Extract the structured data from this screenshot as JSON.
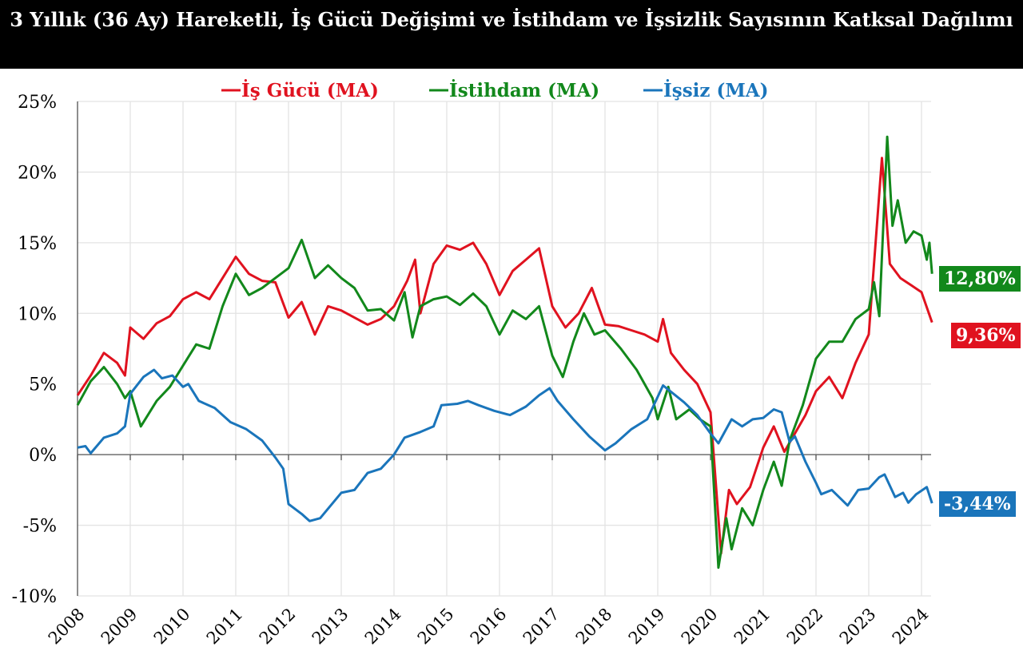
{
  "title": "3 Yıllık (36 Ay) Hareketli, İş Gücü Değişimi ve İstihdam ve İşsizlik Sayısının Katksal Dağılımı",
  "chart_data": {
    "type": "line",
    "title": "3 Yıllık (36 Ay) Hareketli, İş Gücü Değişimi ve İstihdam ve İşsizlik Sayısının Katksal Dağılımı",
    "xlabel": "",
    "ylabel": "",
    "xlim": [
      2008,
      2024.2
    ],
    "ylim": [
      -10,
      25
    ],
    "x_ticks": [
      "2008",
      "2009",
      "2010",
      "2011",
      "2012",
      "2013",
      "2014",
      "2015",
      "2016",
      "2017",
      "2018",
      "2019",
      "2020",
      "2021",
      "2022",
      "2023",
      "2024"
    ],
    "y_ticks": [
      "25%",
      "20%",
      "15%",
      "10%",
      "5%",
      "0%",
      "-5%",
      "-10%"
    ],
    "grid": true,
    "legend_position": "top",
    "series": [
      {
        "name": "İş Gücü (MA)",
        "color": "#e0121f",
        "end_label": "9,36%",
        "x": [
          2008,
          2008.25,
          2008.5,
          2008.75,
          2008.9,
          2009,
          2009.25,
          2009.5,
          2009.75,
          2010,
          2010.25,
          2010.5,
          2010.75,
          2011,
          2011.25,
          2011.5,
          2011.75,
          2012,
          2012.25,
          2012.5,
          2012.75,
          2013,
          2013.25,
          2013.5,
          2013.75,
          2014,
          2014.25,
          2014.4,
          2014.5,
          2014.75,
          2015,
          2015.25,
          2015.5,
          2015.75,
          2016,
          2016.25,
          2016.5,
          2016.75,
          2017,
          2017.25,
          2017.5,
          2017.75,
          2018,
          2018.25,
          2018.5,
          2018.75,
          2019,
          2019.1,
          2019.25,
          2019.5,
          2019.75,
          2020,
          2020.2,
          2020.35,
          2020.5,
          2020.75,
          2021,
          2021.2,
          2021.4,
          2021.6,
          2021.8,
          2022,
          2022.25,
          2022.5,
          2022.75,
          2023,
          2023.25,
          2023.4,
          2023.6,
          2023.8,
          2024,
          2024.2
        ],
        "y": [
          4.2,
          5.6,
          7.2,
          6.5,
          5.6,
          9.0,
          8.2,
          9.3,
          9.8,
          11.0,
          11.5,
          11.0,
          12.5,
          14.0,
          12.8,
          12.3,
          12.2,
          9.7,
          10.8,
          8.5,
          10.5,
          10.2,
          9.7,
          9.2,
          9.6,
          10.5,
          12.3,
          13.8,
          10.0,
          13.5,
          14.8,
          14.5,
          15.0,
          13.5,
          11.3,
          13.0,
          13.8,
          14.6,
          10.5,
          9.0,
          10.0,
          11.8,
          9.2,
          9.1,
          8.8,
          8.5,
          8.0,
          9.6,
          7.2,
          6.0,
          5.0,
          3.0,
          -7.0,
          -2.5,
          -3.5,
          -2.3,
          0.5,
          2.0,
          0.2,
          1.5,
          2.8,
          4.5,
          5.5,
          4.0,
          6.5,
          8.5,
          21.0,
          13.5,
          12.5,
          12.0,
          11.5,
          9.36
        ]
      },
      {
        "name": "İstihdam (MA)",
        "color": "#12881b",
        "end_label": "12,80%",
        "x": [
          2008,
          2008.25,
          2008.5,
          2008.75,
          2008.9,
          2009,
          2009.2,
          2009.5,
          2009.75,
          2010,
          2010.25,
          2010.5,
          2010.75,
          2011,
          2011.25,
          2011.5,
          2011.75,
          2012,
          2012.25,
          2012.5,
          2012.75,
          2013,
          2013.25,
          2013.5,
          2013.75,
          2014,
          2014.2,
          2014.35,
          2014.5,
          2014.75,
          2015,
          2015.25,
          2015.5,
          2015.75,
          2016,
          2016.25,
          2016.5,
          2016.75,
          2017,
          2017.2,
          2017.4,
          2017.6,
          2017.8,
          2018,
          2018.3,
          2018.6,
          2018.9,
          2019,
          2019.2,
          2019.35,
          2019.6,
          2019.8,
          2020,
          2020.15,
          2020.3,
          2020.4,
          2020.6,
          2020.8,
          2021,
          2021.2,
          2021.35,
          2021.5,
          2021.75,
          2022,
          2022.25,
          2022.5,
          2022.75,
          2023,
          2023.1,
          2023.2,
          2023.35,
          2023.45,
          2023.55,
          2023.7,
          2023.85,
          2024,
          2024.1,
          2024.15,
          2024.2
        ],
        "y": [
          3.5,
          5.2,
          6.2,
          5.0,
          4.0,
          4.5,
          2.0,
          3.8,
          4.8,
          6.3,
          7.8,
          7.5,
          10.5,
          12.8,
          11.3,
          11.8,
          12.5,
          13.2,
          15.2,
          12.5,
          13.4,
          12.5,
          11.8,
          10.2,
          10.3,
          9.5,
          11.5,
          8.3,
          10.5,
          11.0,
          11.2,
          10.6,
          11.4,
          10.5,
          8.5,
          10.2,
          9.6,
          10.5,
          7.0,
          5.5,
          8.0,
          10.0,
          8.5,
          8.8,
          7.5,
          6.0,
          4.0,
          2.5,
          4.8,
          2.5,
          3.2,
          2.5,
          2.0,
          -8.0,
          -4.5,
          -6.7,
          -3.8,
          -5.0,
          -2.5,
          -0.5,
          -2.2,
          1.0,
          3.5,
          6.8,
          8.0,
          8.0,
          9.6,
          10.3,
          12.2,
          9.8,
          22.5,
          16.2,
          18.0,
          15.0,
          15.8,
          15.5,
          13.8,
          15.0,
          12.8
        ]
      },
      {
        "name": "İşsiz (MA)",
        "color": "#1a75bb",
        "end_label": "-3,44%",
        "x": [
          2008,
          2008.15,
          2008.25,
          2008.5,
          2008.75,
          2008.9,
          2009,
          2009.25,
          2009.45,
          2009.6,
          2009.8,
          2010,
          2010.1,
          2010.3,
          2010.6,
          2010.9,
          2011.2,
          2011.5,
          2011.75,
          2011.9,
          2012,
          2012.25,
          2012.4,
          2012.6,
          2012.8,
          2013,
          2013.25,
          2013.5,
          2013.75,
          2014,
          2014.2,
          2014.5,
          2014.75,
          2014.9,
          2015.2,
          2015.4,
          2015.6,
          2015.9,
          2016.2,
          2016.5,
          2016.75,
          2016.95,
          2017.1,
          2017.4,
          2017.7,
          2018,
          2018.2,
          2018.5,
          2018.8,
          2019.1,
          2019.3,
          2019.5,
          2019.75,
          2020,
          2020.15,
          2020.4,
          2020.6,
          2020.8,
          2021,
          2021.2,
          2021.35,
          2021.5,
          2021.6,
          2021.8,
          2022,
          2022.1,
          2022.3,
          2022.6,
          2022.8,
          2023,
          2023.2,
          2023.3,
          2023.5,
          2023.65,
          2023.75,
          2023.9,
          2024.1,
          2024.2
        ],
        "y": [
          0.5,
          0.6,
          0.1,
          1.2,
          1.5,
          2.0,
          4.3,
          5.5,
          6.0,
          5.4,
          5.6,
          4.8,
          5.0,
          3.8,
          3.3,
          2.3,
          1.8,
          1.0,
          -0.2,
          -1.0,
          -3.5,
          -4.2,
          -4.7,
          -4.5,
          -3.6,
          -2.7,
          -2.5,
          -1.3,
          -1.0,
          0.0,
          1.2,
          1.6,
          2.0,
          3.5,
          3.6,
          3.8,
          3.5,
          3.1,
          2.8,
          3.4,
          4.2,
          4.7,
          3.8,
          2.5,
          1.3,
          0.3,
          0.8,
          1.8,
          2.5,
          4.9,
          4.3,
          3.7,
          2.8,
          1.5,
          0.8,
          2.5,
          2.0,
          2.5,
          2.6,
          3.2,
          3.0,
          0.9,
          1.3,
          -0.5,
          -2.0,
          -2.8,
          -2.5,
          -3.6,
          -2.5,
          -2.4,
          -1.6,
          -1.4,
          -3.0,
          -2.7,
          -3.4,
          -2.8,
          -2.3,
          -3.44
        ]
      }
    ]
  }
}
